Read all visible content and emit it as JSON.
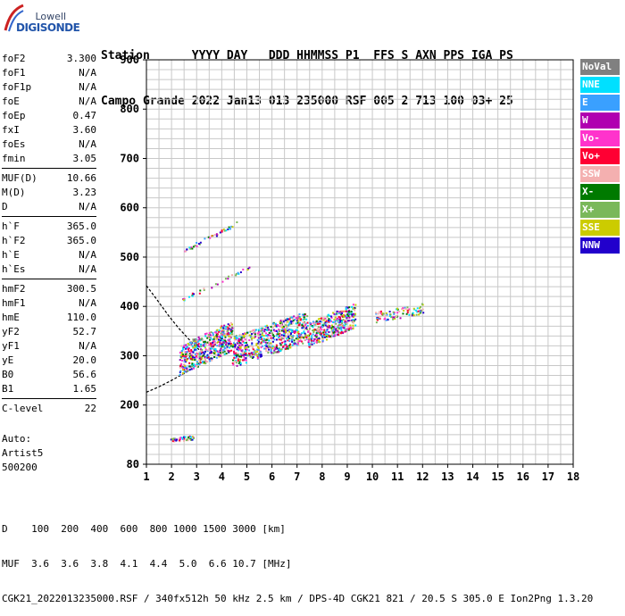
{
  "logo": {
    "line1": "Lowell",
    "line2": "DIGISONDE"
  },
  "header": {
    "labels": [
      "Station",
      "YYYY",
      "DAY",
      "DDD",
      "HHMMSS",
      "P1",
      "FFS",
      "S",
      "AXN",
      "PPS",
      "IGA",
      "PS"
    ],
    "values": [
      "Campo Grande",
      "2022",
      "Jan13",
      "013",
      "235000",
      "RSF",
      "005",
      "2",
      "713",
      "100",
      "03+",
      "25"
    ],
    "line1": "Station      YYYY DAY   DDD HHMMSS P1  FFS S AXN PPS IGA PS",
    "line2": "Campo Grande 2022 Jan13 013 235000 RSF 005 2 713 100 03+ 25"
  },
  "params": {
    "group1": [
      {
        "name": "foF2",
        "value": "3.300"
      },
      {
        "name": "foF1",
        "value": "N/A"
      },
      {
        "name": "foF1p",
        "value": "N/A"
      },
      {
        "name": "foE",
        "value": "N/A"
      },
      {
        "name": "foEp",
        "value": "0.47"
      },
      {
        "name": "fxI",
        "value": "3.60"
      },
      {
        "name": "foEs",
        "value": "N/A"
      },
      {
        "name": "fmin",
        "value": "3.05"
      }
    ],
    "group2": [
      {
        "name": "MUF(D)",
        "value": "10.66"
      },
      {
        "name": "M(D)",
        "value": "3.23"
      },
      {
        "name": "D",
        "value": "N/A"
      }
    ],
    "group3": [
      {
        "name": "h`F",
        "value": "365.0"
      },
      {
        "name": "h`F2",
        "value": "365.0"
      },
      {
        "name": "h`E",
        "value": "N/A"
      },
      {
        "name": "h`Es",
        "value": "N/A"
      }
    ],
    "group4": [
      {
        "name": "hmF2",
        "value": "300.5"
      },
      {
        "name": "hmF1",
        "value": "N/A"
      },
      {
        "name": "hmE",
        "value": "110.0"
      },
      {
        "name": "yF2",
        "value": "52.7"
      },
      {
        "name": "yF1",
        "value": "N/A"
      },
      {
        "name": "yE",
        "value": "20.0"
      },
      {
        "name": "B0",
        "value": "56.6"
      },
      {
        "name": "B1",
        "value": "1.65"
      }
    ],
    "group5": [
      {
        "name": "C-level",
        "value": "22"
      }
    ]
  },
  "auto": {
    "line1": "Auto:",
    "line2": "Artist5",
    "line3": "500200"
  },
  "legend": [
    {
      "label": "NoVal",
      "color": "#808080"
    },
    {
      "label": "NNE",
      "color": "#00e0ff"
    },
    {
      "label": "E",
      "color": "#3aa0ff"
    },
    {
      "label": "W",
      "color": "#b000b0"
    },
    {
      "label": "Vo-",
      "color": "#ff33cc"
    },
    {
      "label": "Vo+",
      "color": "#ff0033"
    },
    {
      "label": "SSW",
      "color": "#f4b0b0"
    },
    {
      "label": "X-",
      "color": "#007a00"
    },
    {
      "label": "X+",
      "color": "#7ab85a"
    },
    {
      "label": "SSE",
      "color": "#cccc00"
    },
    {
      "label": "NNW",
      "color": "#2200cc"
    }
  ],
  "chart_data": {
    "type": "scatter",
    "xlabel": "",
    "ylabel": "",
    "xlim": [
      1,
      18
    ],
    "ylim": [
      80,
      900
    ],
    "x_ticks": [
      1,
      2,
      3,
      4,
      5,
      6,
      7,
      8,
      9,
      10,
      11,
      12,
      13,
      14,
      15,
      16,
      17,
      18
    ],
    "y_ticks": [
      80,
      200,
      300,
      400,
      500,
      600,
      700,
      800,
      900
    ],
    "grid": true,
    "legend_position": "right",
    "profile_curve": [
      {
        "x": 1.0,
        "y": 442
      },
      {
        "x": 1.4,
        "y": 415
      },
      {
        "x": 1.9,
        "y": 380
      },
      {
        "x": 2.3,
        "y": 355
      },
      {
        "x": 2.7,
        "y": 333
      },
      {
        "x": 3.1,
        "y": 312
      },
      {
        "x": 3.25,
        "y": 300
      },
      {
        "x": 3.1,
        "y": 285
      },
      {
        "x": 2.7,
        "y": 270
      },
      {
        "x": 2.0,
        "y": 250
      },
      {
        "x": 1.5,
        "y": 237
      },
      {
        "x": 1.0,
        "y": 226
      }
    ],
    "trace_clusters": [
      {
        "x0": 2.3,
        "x1": 4.4,
        "y0": 262,
        "y1": 372
      },
      {
        "x0": 4.4,
        "x1": 7.4,
        "y0": 278,
        "y1": 392
      },
      {
        "x0": 7.4,
        "x1": 9.3,
        "y0": 318,
        "y1": 408
      },
      {
        "x0": 10.1,
        "x1": 12.0,
        "y0": 368,
        "y1": 408
      },
      {
        "x0": 1.9,
        "x1": 2.9,
        "y0": 125,
        "y1": 140
      },
      {
        "x0": 2.5,
        "x1": 4.6,
        "y0": 515,
        "y1": 570
      },
      {
        "x0": 2.4,
        "x1": 5.1,
        "y0": 415,
        "y1": 480
      }
    ]
  },
  "footer": {
    "row1_label": "D",
    "row1_values": "100  200  400  600  800 1000 1500 3000 [km]",
    "row2_label": "MUF",
    "row2_values": "3.6  3.6  3.8  4.1  4.4  5.0  6.6 10.7 [MHz]",
    "line1": "D    100  200  400  600  800 1000 1500 3000 [km]",
    "line2": "MUF  3.6  3.6  3.8  4.1  4.4  5.0  6.6 10.7 [MHz]",
    "line3": "CGK21_2022013235000.RSF / 340fx512h 50 kHz 2.5 km / DPS-4D CGK21 821 / 20.5 S 305.0 E Ion2Png 1.3.20"
  }
}
